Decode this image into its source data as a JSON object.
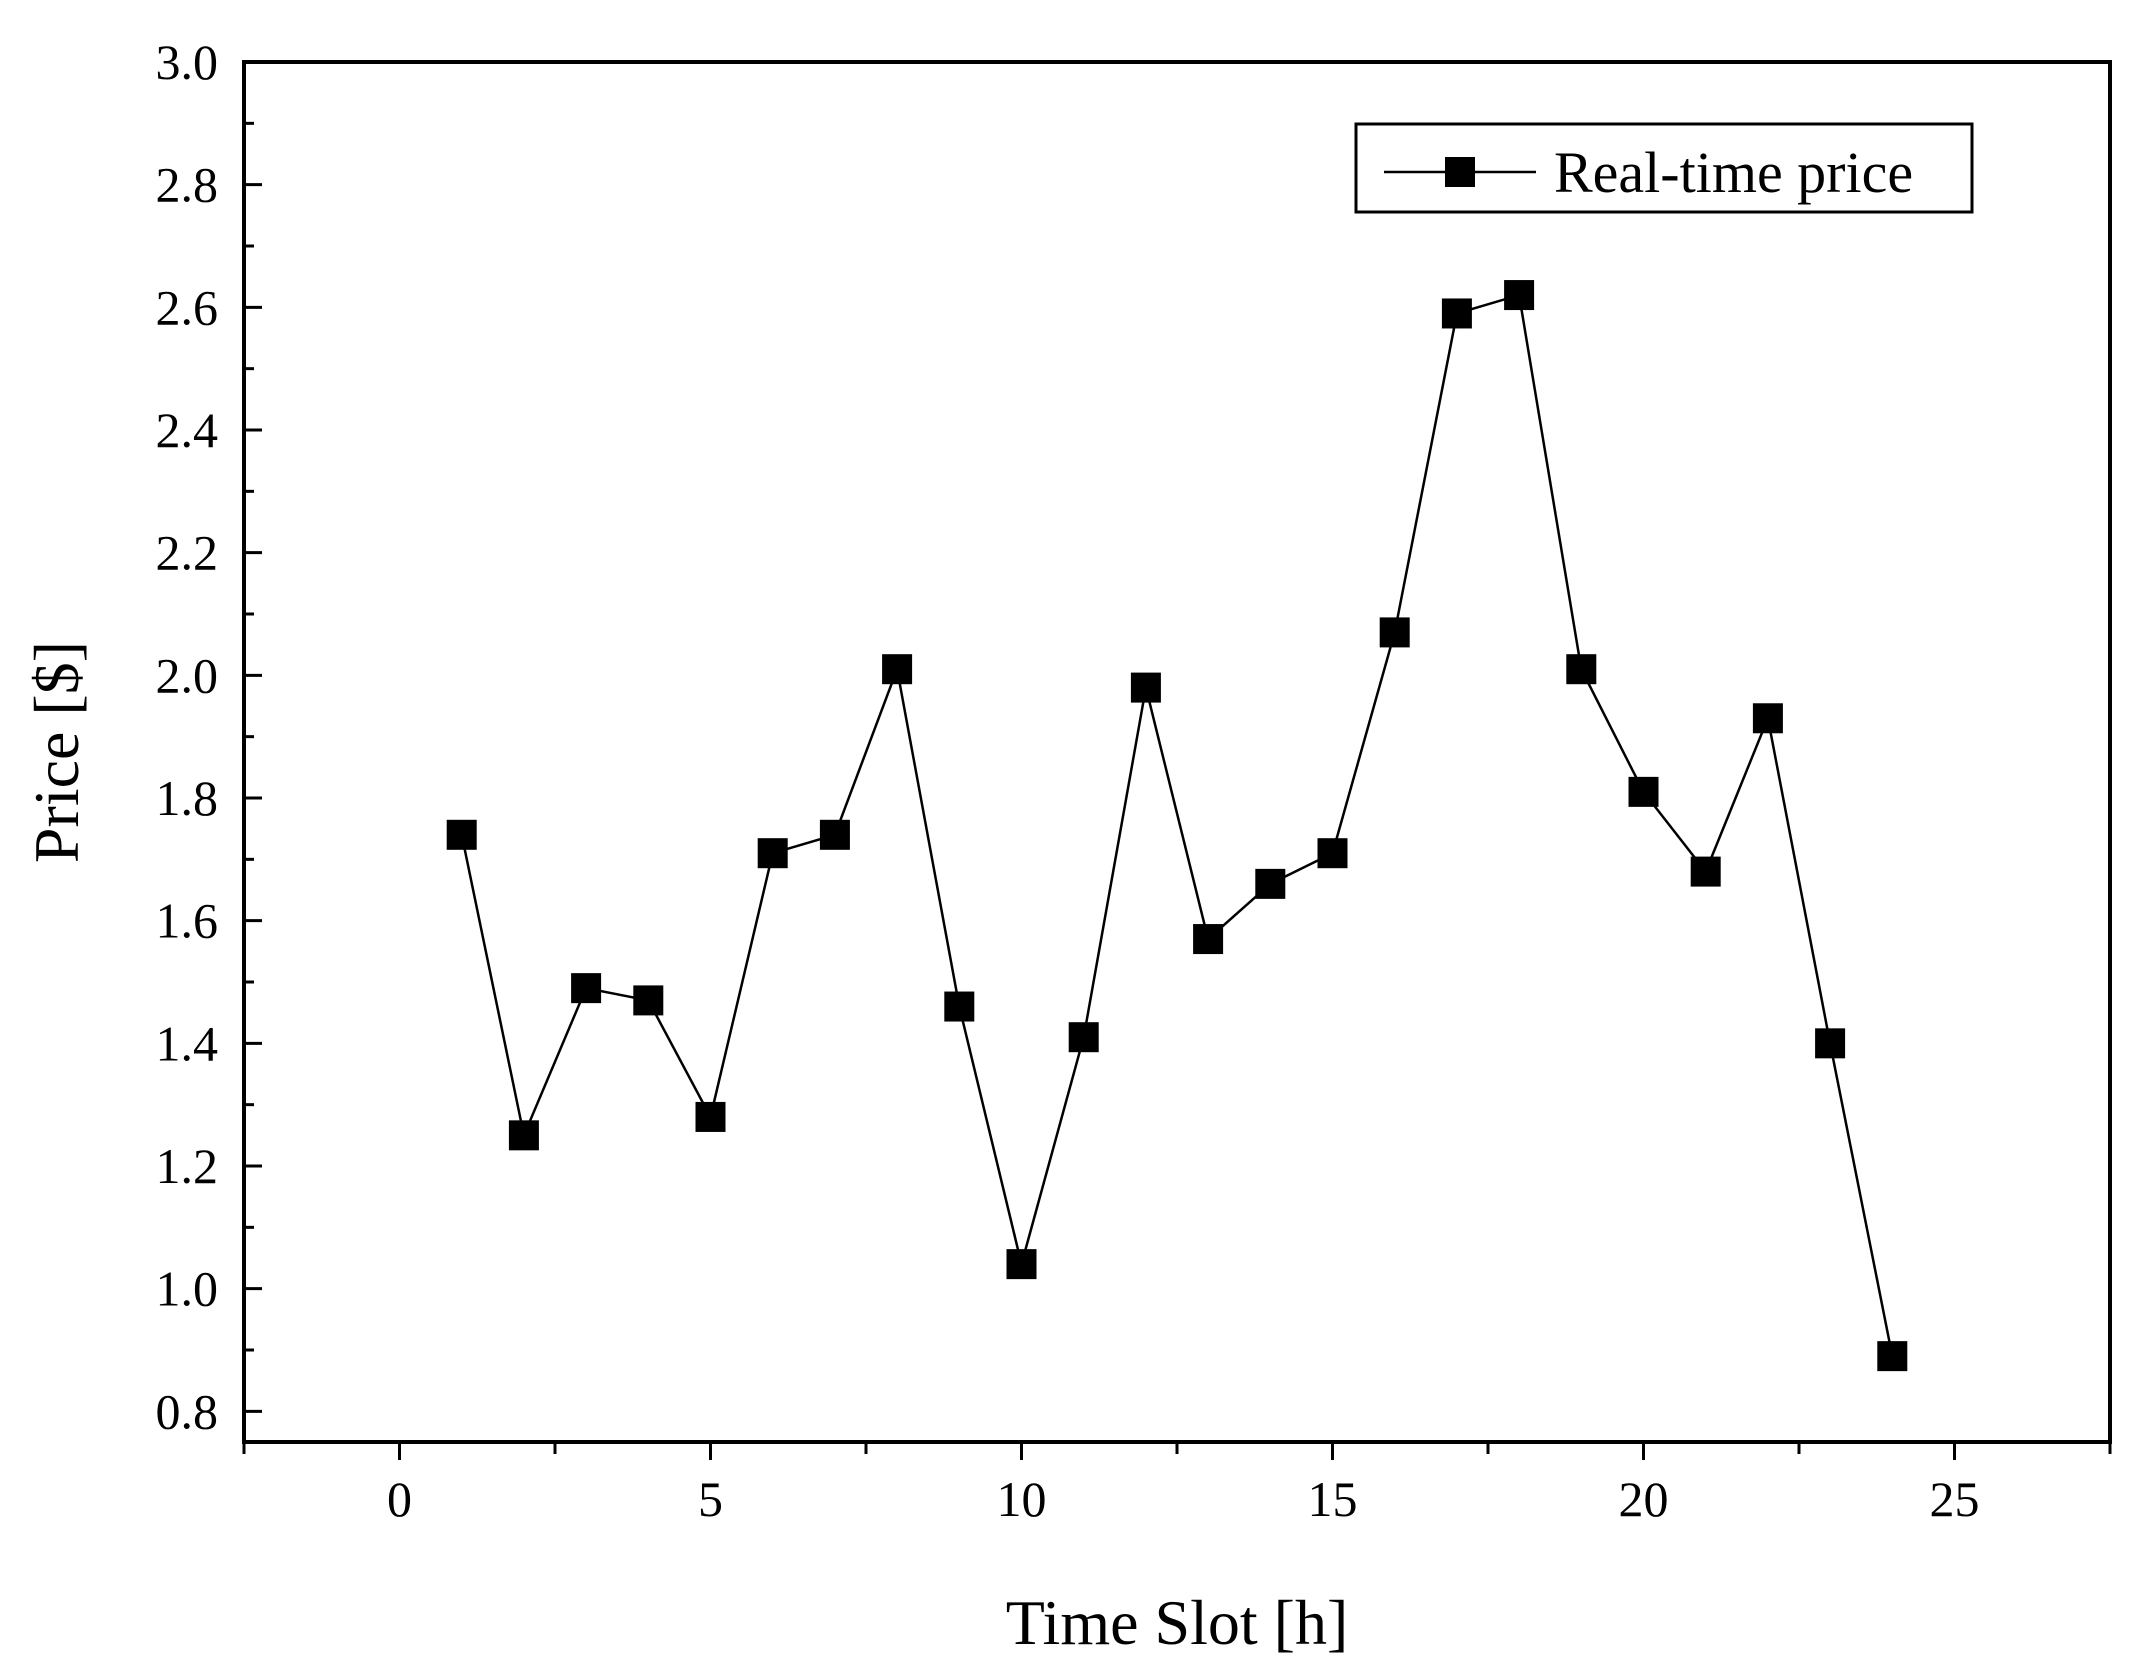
{
  "chart_data": {
    "type": "line",
    "title": "",
    "xlabel": "Time Slot [h]",
    "ylabel": "Price [$]",
    "xlim": [
      -2.5,
      27.5
    ],
    "ylim": [
      0.75,
      3.0
    ],
    "x_ticks": [
      0,
      5,
      10,
      15,
      20,
      25
    ],
    "x_tick_labels": [
      "0",
      "5",
      "10",
      "15",
      "20",
      "25"
    ],
    "y_ticks": [
      0.8,
      1.0,
      1.2,
      1.4,
      1.6,
      1.8,
      2.0,
      2.2,
      2.4,
      2.6,
      2.8,
      3.0
    ],
    "y_tick_labels": [
      "0.8",
      "1.0",
      "1.2",
      "1.4",
      "1.6",
      "1.8",
      "2.0",
      "2.2",
      "2.4",
      "2.6",
      "2.8",
      "3.0"
    ],
    "grid": false,
    "legend_position": "top-right",
    "colors": {
      "line": "#000000",
      "marker": "#000000",
      "background": "#ffffff"
    },
    "series": [
      {
        "name": "Real-time price",
        "marker": "square",
        "x": [
          1,
          2,
          3,
          4,
          5,
          6,
          7,
          8,
          9,
          10,
          11,
          12,
          13,
          14,
          15,
          16,
          17,
          18,
          19,
          20,
          21,
          22,
          23,
          24
        ],
        "y": [
          1.74,
          1.25,
          1.49,
          1.47,
          1.28,
          1.71,
          1.74,
          2.01,
          1.46,
          1.04,
          1.41,
          1.98,
          1.57,
          1.66,
          1.71,
          2.07,
          2.59,
          2.62,
          2.01,
          1.81,
          1.68,
          1.93,
          1.4,
          0.89
        ]
      }
    ]
  }
}
